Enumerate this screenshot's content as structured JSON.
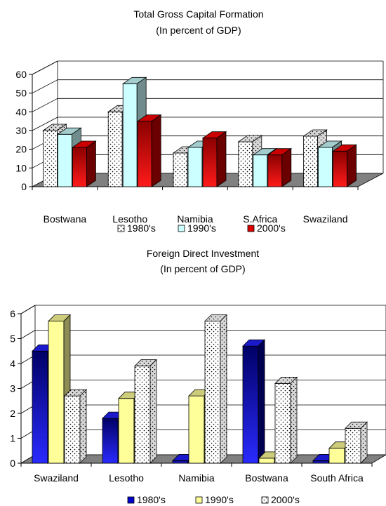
{
  "chart_data": [
    {
      "type": "bar",
      "title": "Total Gross Capital Formation",
      "subtitle": "(In percent of GDP)",
      "categories": [
        "Bostwana",
        "Lesotho",
        "Namibia",
        "S.Africa",
        "Swaziland"
      ],
      "series": [
        {
          "name": "1980's",
          "values": [
            30,
            40,
            18,
            24,
            27
          ],
          "pattern": "dots",
          "color": "#ffffff"
        },
        {
          "name": "1990's",
          "values": [
            28,
            55,
            21,
            17,
            21
          ],
          "pattern": "solid",
          "color": "#ccffff"
        },
        {
          "name": "2000's",
          "values": [
            21,
            35,
            26,
            17,
            19
          ],
          "pattern": "solid",
          "color": "#ff0000"
        }
      ],
      "yticks": [
        "0",
        "10",
        "20",
        "30",
        "40",
        "50",
        "60"
      ],
      "ylim": [
        0,
        60
      ],
      "grid": true,
      "legend_position": "bottom"
    },
    {
      "type": "bar",
      "title": "Foreign Direct Investment",
      "subtitle": "(In percent of GDP)",
      "categories": [
        "Swaziland",
        "Lesotho",
        "Namibia",
        "Bostwana",
        "South Africa"
      ],
      "series": [
        {
          "name": "1980's",
          "values": [
            4.5,
            1.8,
            0.1,
            4.7,
            0.1
          ],
          "pattern": "solid",
          "color": "#0000cc"
        },
        {
          "name": "1990's",
          "values": [
            5.7,
            2.6,
            2.7,
            0.2,
            0.6
          ],
          "pattern": "solid",
          "color": "#ffff99"
        },
        {
          "name": "2000's",
          "values": [
            2.7,
            3.9,
            5.7,
            3.2,
            1.4
          ],
          "pattern": "dots",
          "color": "#ffffff"
        }
      ],
      "yticks": [
        "0",
        "1",
        "2",
        "3",
        "4",
        "5",
        "6"
      ],
      "ylim": [
        0,
        6
      ],
      "grid": true,
      "legend_position": "bottom"
    }
  ]
}
